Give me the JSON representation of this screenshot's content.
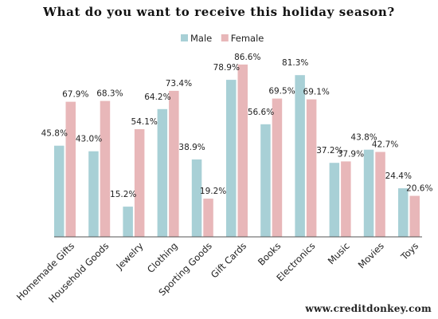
{
  "chart_data": {
    "type": "bar",
    "title": "What do you want to receive this holiday season?",
    "categories": [
      "Homemade Gifts",
      "Household Goods",
      "Jewelry",
      "Clothing",
      "Sporting Goods",
      "Gift Cards",
      "Books",
      "Electronics",
      "Music",
      "Movies",
      "Toys"
    ],
    "series": [
      {
        "name": "Male",
        "color": "#a8d0d6",
        "values": [
          45.8,
          43.0,
          15.2,
          64.2,
          38.9,
          78.9,
          56.6,
          81.3,
          37.2,
          43.8,
          24.4
        ]
      },
      {
        "name": "Female",
        "color": "#e8b7b9",
        "values": [
          67.9,
          68.3,
          54.1,
          73.4,
          19.2,
          86.6,
          69.5,
          69.1,
          37.9,
          42.7,
          20.6
        ]
      }
    ],
    "data_labels": [
      [
        "45.8%",
        "43.0%",
        "15.2%",
        "64.2%",
        "38.9%",
        "78.9%",
        "56.6%",
        "81.3%",
        "37.2%",
        "43.8%",
        "24.4%"
      ],
      [
        "67.9%",
        "68.3%",
        "54.1%",
        "73.4%",
        "19.2%",
        "86.6%",
        "69.5%",
        "69.1%",
        "37.9%",
        "42.7%",
        "20.6%"
      ]
    ],
    "ylim": [
      0,
      100
    ],
    "grid": false,
    "legend": "top-center",
    "xlabel": "",
    "ylabel": ""
  },
  "source": "www.creditdonkey.com"
}
